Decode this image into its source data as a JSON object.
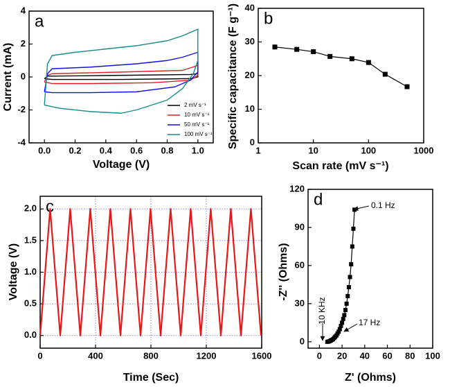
{
  "chart_data": [
    {
      "type": "line",
      "panel": "a",
      "xlabel": "Voltage (V)",
      "ylabel": "Current (mA)",
      "xlim": [
        -0.1,
        1.1
      ],
      "ylim": [
        -4,
        4
      ],
      "xticks": [
        {
          "value": 0,
          "label": "0.0"
        },
        {
          "value": 0.2,
          "label": "0.2"
        },
        {
          "value": 0.4,
          "label": "0.4"
        },
        {
          "value": 0.6,
          "label": "0.6"
        },
        {
          "value": 0.8,
          "label": "0.8"
        },
        {
          "value": 1,
          "label": "1.0"
        }
      ],
      "yticks": [
        -4,
        -2,
        0,
        2,
        4
      ],
      "legend": "lower right",
      "series": [
        {
          "name": "2 mV s⁻¹",
          "color": "#000000",
          "x": [
            0,
            0.02,
            0.5,
            0.95,
            1.0,
            1.0,
            0.95,
            0.5,
            0.05,
            0
          ],
          "values": [
            -0.1,
            0.05,
            0.1,
            0.15,
            0.2,
            0.0,
            -0.1,
            -0.15,
            -0.15,
            -0.1
          ]
        },
        {
          "name": "10 mV s⁻¹",
          "color": "#e02020",
          "x": [
            0,
            0.02,
            0.05,
            0.5,
            0.9,
            1.0,
            1.0,
            0.95,
            0.7,
            0.3,
            0.05,
            0
          ],
          "values": [
            -0.3,
            0.1,
            0.2,
            0.3,
            0.4,
            0.7,
            0.1,
            -0.2,
            -0.35,
            -0.4,
            -0.4,
            -0.3
          ]
        },
        {
          "name": "50 mV s⁻¹",
          "color": "#1010e0",
          "x": [
            0,
            0.02,
            0.05,
            0.3,
            0.6,
            0.8,
            0.9,
            1.0,
            1.0,
            0.95,
            0.85,
            0.6,
            0.3,
            0.05,
            0
          ],
          "values": [
            -0.9,
            0.2,
            0.5,
            0.6,
            0.8,
            1.0,
            1.2,
            1.5,
            0.3,
            -0.2,
            -0.6,
            -0.9,
            -0.95,
            -0.95,
            -0.9
          ]
        },
        {
          "name": "100 mV s⁻¹",
          "color": "#1a8a8a",
          "x": [
            0,
            0.02,
            0.05,
            0.2,
            0.4,
            0.6,
            0.8,
            0.9,
            1.0,
            1.0,
            0.97,
            0.9,
            0.8,
            0.6,
            0.5,
            0.3,
            0.1,
            0
          ],
          "values": [
            -1.7,
            0.8,
            1.3,
            1.5,
            1.7,
            1.9,
            2.2,
            2.5,
            2.9,
            1.0,
            0.2,
            -0.7,
            -1.4,
            -2.0,
            -2.2,
            -2.1,
            -1.9,
            -1.7
          ]
        }
      ]
    },
    {
      "type": "line",
      "panel": "b",
      "xlabel": "Scan rate (mV s⁻¹)",
      "ylabel": "Specific capacitance (F g⁻¹)",
      "xscale": "log",
      "xlim": [
        1,
        1000
      ],
      "ylim": [
        0,
        40
      ],
      "xticks": [
        1,
        10,
        100,
        1000
      ],
      "yticks": [
        0,
        10,
        20,
        30,
        40
      ],
      "marker": "square",
      "color": "#000000",
      "x": [
        2,
        5,
        10,
        20,
        50,
        100,
        200,
        500
      ],
      "values": [
        28.5,
        27.8,
        27.1,
        25.7,
        25,
        23.9,
        20.4,
        16.7
      ]
    },
    {
      "type": "line",
      "panel": "c",
      "xlabel": "Time (Sec)",
      "ylabel": "Voltage (V)",
      "xlim": [
        0,
        1600
      ],
      "ylim": [
        -0.2,
        2.2
      ],
      "grid": true,
      "color": "#e81818",
      "xticks": [
        0,
        400,
        800,
        1200,
        1600
      ],
      "yticks": [
        {
          "value": 0,
          "label": "0.0"
        },
        {
          "value": 0.5,
          "label": "0.5"
        },
        {
          "value": 1,
          "label": "1.0"
        },
        {
          "value": 1.5,
          "label": "1.5"
        },
        {
          "value": 2,
          "label": "2.0"
        }
      ],
      "x": [
        0,
        72,
        145,
        217,
        290,
        362,
        435,
        507,
        580,
        652,
        725,
        797,
        870,
        942,
        1015,
        1087,
        1160,
        1232,
        1305,
        1377,
        1450,
        1522,
        1595
      ],
      "values": [
        0,
        2,
        0,
        2,
        0,
        2,
        0,
        2,
        0,
        2,
        0,
        2,
        0,
        2,
        0,
        2,
        0,
        2,
        0,
        2,
        0,
        2,
        0
      ]
    },
    {
      "type": "line",
      "panel": "d",
      "xlabel": "Z' (Ohms)",
      "ylabel": "-Z'' (Ohms)",
      "xlim": [
        -10,
        100
      ],
      "ylim": [
        -5,
        120
      ],
      "xticks": [
        0,
        20,
        40,
        60,
        80,
        100
      ],
      "yticks": [
        0,
        30,
        60,
        90,
        120
      ],
      "marker": "square",
      "color": "#000000",
      "annotations": [
        "0.1 Hz",
        "17 Hz",
        "10 KHz"
      ],
      "x": [
        7,
        8,
        9,
        10,
        11,
        12,
        13,
        14,
        15,
        16,
        17,
        18,
        19,
        20,
        21,
        22,
        23,
        24,
        25,
        26,
        27,
        28,
        29,
        30,
        31
      ],
      "values": [
        0,
        0.2,
        0.5,
        1,
        1.5,
        2,
        3,
        4,
        5,
        6.5,
        8,
        10,
        12.5,
        15,
        18,
        21,
        25,
        30,
        36,
        43,
        51,
        61,
        75,
        89,
        104
      ]
    }
  ]
}
